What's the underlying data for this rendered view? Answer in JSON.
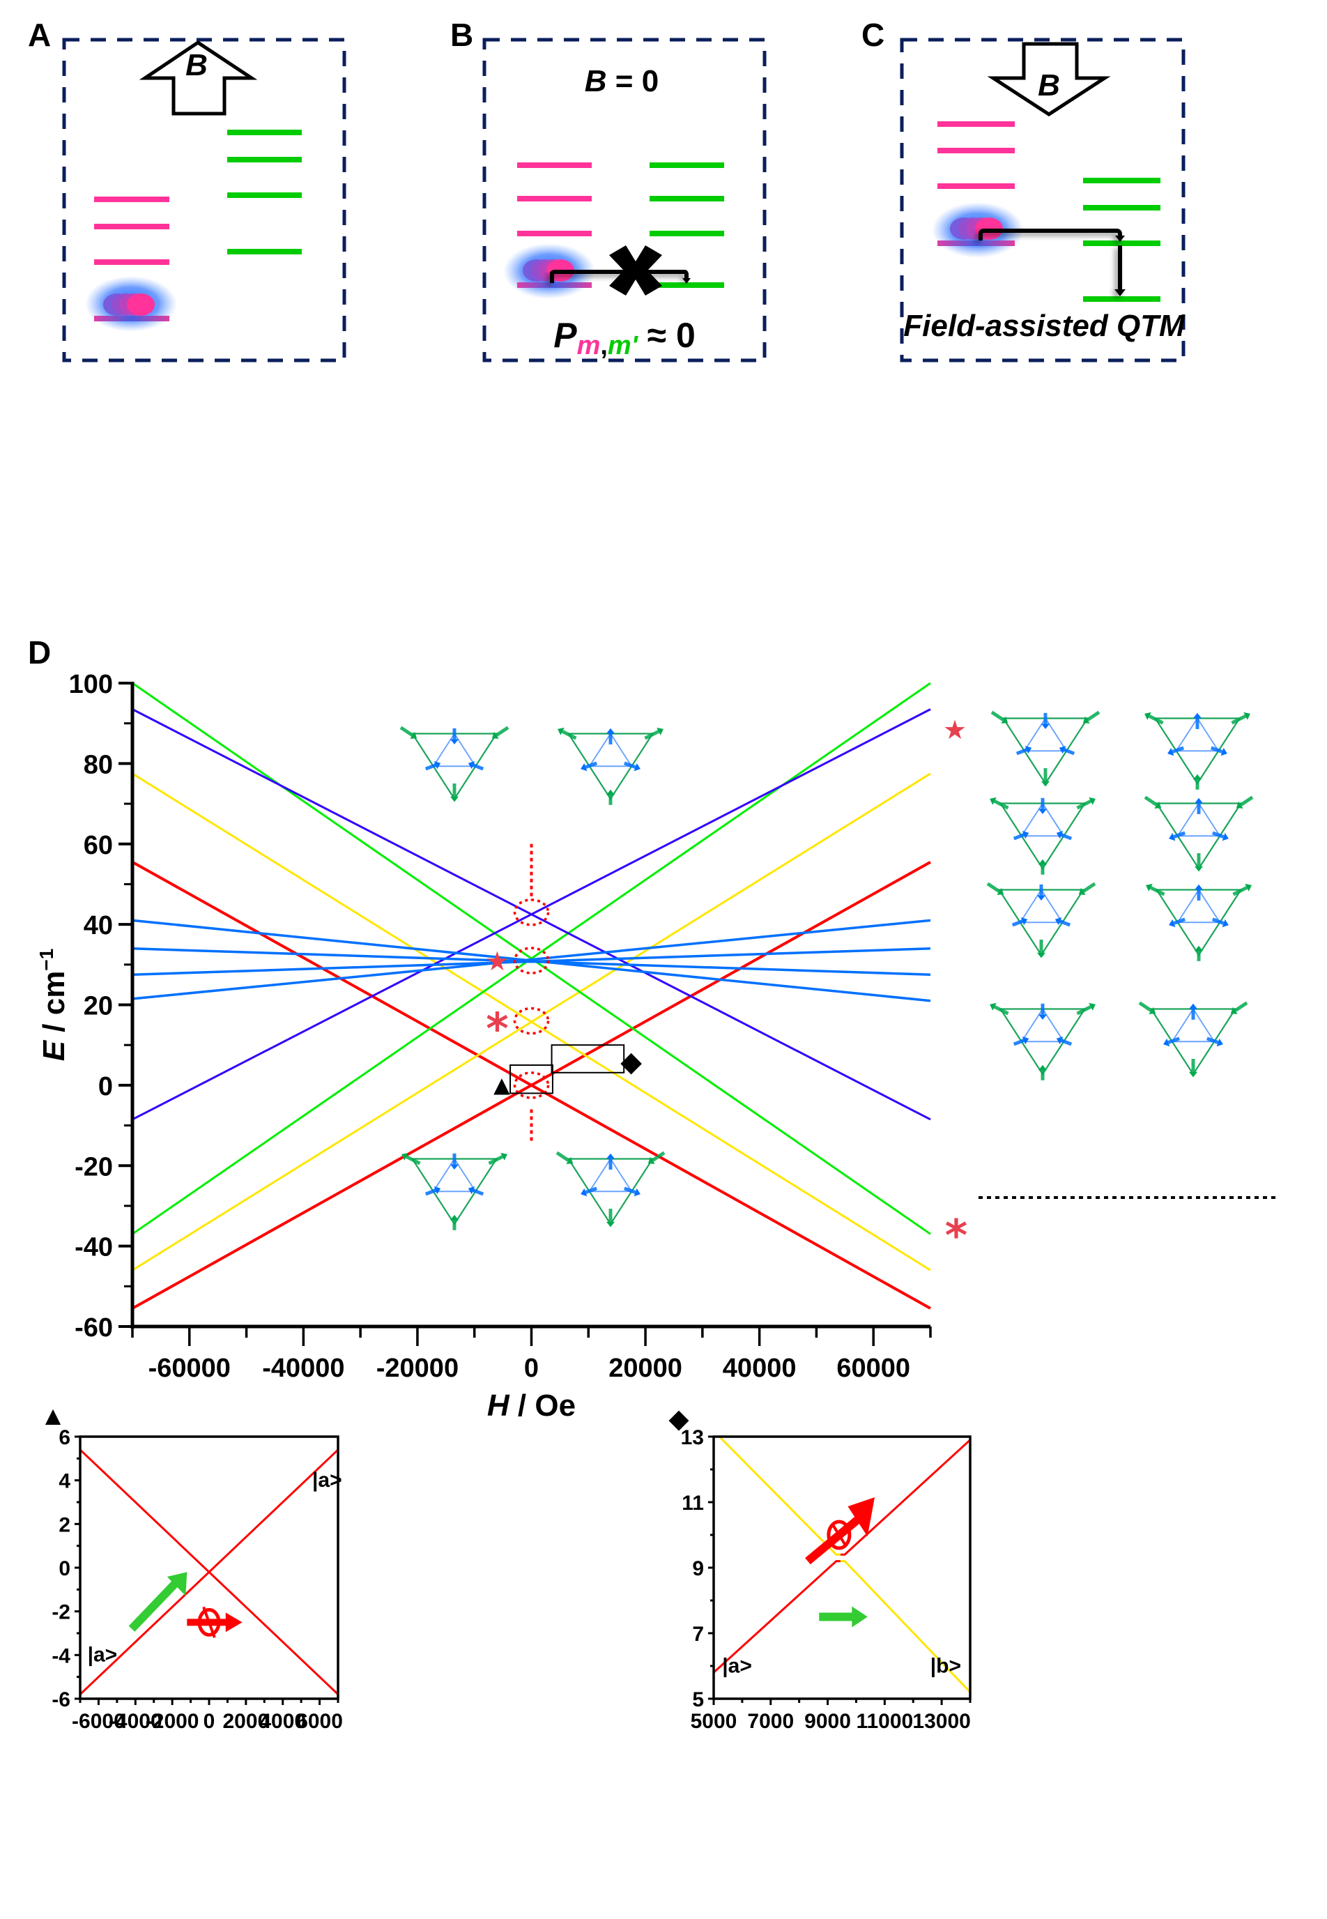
{
  "figure": {
    "panels": {
      "A": {
        "label": "A",
        "field_label": "B",
        "field_direction": "up"
      },
      "B": {
        "label": "B",
        "field_label_B": "B",
        "field_label_rest": " = 0",
        "prob_P": "P",
        "prob_m": "m",
        "prob_comma": ",",
        "prob_mprime": "m'",
        "prob_rest": " ≈ 0",
        "blocked_marker": "✖"
      },
      "C": {
        "label": "C",
        "field_label": "B",
        "field_direction": "down",
        "caption": "Field-assisted QTM"
      },
      "D": {
        "label": "D"
      }
    },
    "colors": {
      "frame": "#0b1f5c",
      "pink_level": "#ff3399",
      "green_level": "#00cc00",
      "red": "#ff0000",
      "yellow": "#ffe600",
      "green": "#00ee00",
      "purple": "#3300ff",
      "blue": "#0070ff",
      "marker_red": "#e8404f"
    },
    "markers": {
      "star": "★",
      "asterisk": "*",
      "triangle": "▲",
      "diamond": "◆"
    }
  },
  "chart_data": [
    {
      "id": "D",
      "type": "line",
      "title": "",
      "xlabel_var": "H",
      "xlabel_unit": " / Oe",
      "ylabel_var": "E",
      "ylabel_unit": " / cm",
      "ylabel_sup": "−1",
      "xlim": [
        -70000,
        70000
      ],
      "ylim": [
        -60,
        100
      ],
      "xticks": [
        -60000,
        -40000,
        -20000,
        0,
        20000,
        40000,
        60000
      ],
      "xtick_labels": [
        "-60000",
        "-40000",
        "-20000",
        "0",
        "20000",
        "40000",
        "60000"
      ],
      "yticks": [
        -60,
        -40,
        -20,
        0,
        20,
        40,
        60,
        80,
        100
      ],
      "ytick_labels": [
        "-60",
        "-40",
        "-20",
        "0",
        "20",
        "40",
        "60",
        "80",
        "100"
      ],
      "grid": false,
      "series": [
        {
          "name": "red-down",
          "color": "#ff0000",
          "x": [
            -70000,
            70000
          ],
          "y": [
            55.5,
            -55.5
          ]
        },
        {
          "name": "red-up",
          "color": "#ff0000",
          "x": [
            -70000,
            70000
          ],
          "y": [
            -55.5,
            55.5
          ]
        },
        {
          "name": "yellow-down",
          "color": "#ffe600",
          "x": [
            -70000,
            70000
          ],
          "y": [
            77.5,
            -46
          ]
        },
        {
          "name": "yellow-up",
          "color": "#ffe600",
          "x": [
            -70000,
            70000
          ],
          "y": [
            -46,
            77.5
          ]
        },
        {
          "name": "green-down",
          "color": "#00ee00",
          "x": [
            -70000,
            70000
          ],
          "y": [
            100,
            -37
          ]
        },
        {
          "name": "green-up",
          "color": "#00ee00",
          "x": [
            -70000,
            70000
          ],
          "y": [
            -37,
            100
          ]
        },
        {
          "name": "purple-down",
          "color": "#3300ff",
          "x": [
            -70000,
            70000
          ],
          "y": [
            93.5,
            -8.5
          ]
        },
        {
          "name": "purple-up",
          "color": "#3300ff",
          "x": [
            -70000,
            70000
          ],
          "y": [
            -8.5,
            93.5
          ]
        },
        {
          "name": "blue-1",
          "color": "#0070ff",
          "x": [
            -70000,
            70000
          ],
          "y": [
            41,
            21
          ]
        },
        {
          "name": "blue-2",
          "color": "#0070ff",
          "x": [
            -70000,
            70000
          ],
          "y": [
            34,
            27.5
          ]
        },
        {
          "name": "blue-3",
          "color": "#0070ff",
          "x": [
            -70000,
            70000
          ],
          "y": [
            27.5,
            34
          ]
        },
        {
          "name": "blue-4",
          "color": "#0070ff",
          "x": [
            -70000,
            70000
          ],
          "y": [
            21.5,
            41
          ]
        }
      ],
      "annotations": {
        "crossings_circled_at_H0": [
          43,
          31,
          16,
          0
        ],
        "star_at": [
          -6000,
          31
        ],
        "asterisk_at": [
          -6000,
          15.5
        ],
        "triangle_box": {
          "x": [
            -2500,
            2500
          ],
          "y": [
            -2,
            5
          ]
        },
        "diamond_box": {
          "x": [
            6000,
            15000
          ],
          "y": [
            4,
            10
          ]
        }
      }
    },
    {
      "id": "triangle-inset",
      "type": "line",
      "marker_label": "▲",
      "xlim": [
        -7000,
        7000
      ],
      "ylim": [
        -6,
        6
      ],
      "xticks": [
        -6000,
        -4000,
        -2000,
        0,
        2000,
        4000,
        6000
      ],
      "xtick_labels": [
        "-6000",
        "-4000",
        "-2000",
        "0",
        "2000",
        "4000",
        "6000"
      ],
      "yticks": [
        -6,
        -4,
        -2,
        0,
        2,
        4,
        6
      ],
      "ytick_labels": [
        "-6",
        "-4",
        "-2",
        "0",
        "2",
        "4",
        "6"
      ],
      "series": [
        {
          "name": "red-up",
          "color": "#ff0000",
          "x": [
            -7000,
            7000
          ],
          "y": [
            -5.8,
            5.4
          ]
        },
        {
          "name": "red-down",
          "color": "#ff0000",
          "x": [
            -7000,
            7000
          ],
          "y": [
            5.4,
            -5.8
          ]
        }
      ],
      "labels": [
        {
          "text": "|a>",
          "x": -6600,
          "y": -4.3
        },
        {
          "text": "|a>",
          "x": 5600,
          "y": 3.7
        }
      ]
    },
    {
      "id": "diamond-inset",
      "type": "line",
      "marker_label": "◆",
      "xlim": [
        5000,
        14000
      ],
      "ylim": [
        5,
        13
      ],
      "xticks": [
        5000,
        7000,
        9000,
        11000,
        13000
      ],
      "xtick_labels": [
        "5000",
        "7000",
        "9000",
        "11000",
        "13000"
      ],
      "yticks": [
        5,
        7,
        9,
        11,
        13
      ],
      "ytick_labels": [
        "5",
        "7",
        "9",
        "11",
        "13"
      ],
      "series": [
        {
          "name": "yellow-upper",
          "color": "#ffe600",
          "x": [
            5200,
            9300,
            9450
          ],
          "y": [
            13,
            9.4,
            9.4
          ]
        },
        {
          "name": "red-upper",
          "color": "#ff0000",
          "x": [
            9450,
            9600,
            14000
          ],
          "y": [
            9.4,
            9.4,
            12.9
          ]
        },
        {
          "name": "red-lower",
          "color": "#ff0000",
          "x": [
            5000,
            9300,
            9450
          ],
          "y": [
            5.8,
            9.2,
            9.2
          ]
        },
        {
          "name": "yellow-lower",
          "color": "#ffe600",
          "x": [
            9450,
            9600,
            14000
          ],
          "y": [
            9.2,
            9.2,
            5.2
          ]
        }
      ],
      "labels": [
        {
          "text": "|a>",
          "x": 5300,
          "y": 5.8
        },
        {
          "text": "|b>",
          "x": 12600,
          "y": 5.8
        }
      ]
    }
  ]
}
